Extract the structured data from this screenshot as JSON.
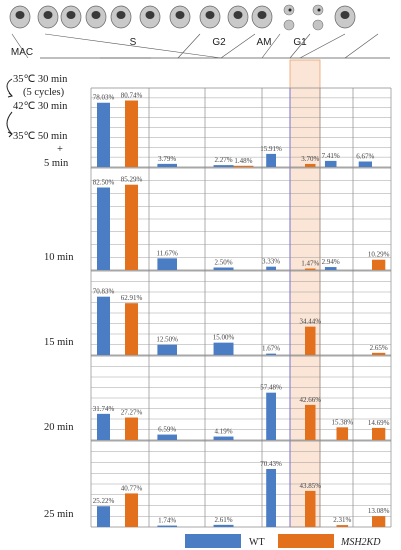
{
  "chart_data": {
    "type": "bar",
    "stages_header": [
      "MAC",
      "S",
      "G2",
      "AM",
      "G1"
    ],
    "conditions": [
      "35℃ 30 min",
      "(5 cycles)",
      "42℃ 30 min",
      "35℃ 50 min",
      "+",
      "5 min"
    ],
    "columns": 7,
    "highlight_column": 4,
    "legend": [
      "WT",
      "MSH2KD"
    ],
    "colors": {
      "WT": "#4a7dc3",
      "MSH2KD": "#e2701c",
      "highlight": "#fbe5d6",
      "highlight_border": "#e8a272",
      "grid": "#8a8a8a",
      "guide": "#6a6ad8"
    },
    "rows": [
      {
        "time": "5 min",
        "WT": [
          78.03,
          3.79,
          2.27,
          15.91,
          null,
          7.41,
          6.67
        ],
        "MSH2KD": [
          80.74,
          null,
          1.48,
          null,
          3.7,
          null,
          null
        ],
        "labels": {
          "WT": [
            "78.03%",
            "3.79%",
            "2.27%",
            "15.91%",
            "",
            "7.41%",
            "6.67%"
          ],
          "MSH2KD": [
            "80.74%",
            "",
            "1.48%",
            "",
            "3.70%",
            "",
            ""
          ]
        }
      },
      {
        "time": "10 min",
        "WT": [
          82.5,
          11.67,
          2.5,
          3.33,
          null,
          2.94,
          null
        ],
        "MSH2KD": [
          85.29,
          null,
          null,
          null,
          1.47,
          null,
          10.29
        ],
        "labels": {
          "WT": [
            "82.50%",
            "11.67%",
            "2.50%",
            "3.33%",
            "",
            "2.94%",
            ""
          ],
          "MSH2KD": [
            "85.29%",
            "",
            "",
            "",
            "1.47%",
            "",
            "10.29%"
          ]
        }
      },
      {
        "time": "15 min",
        "WT": [
          70.83,
          12.5,
          15.0,
          1.67,
          null,
          null,
          null
        ],
        "MSH2KD": [
          62.91,
          null,
          null,
          null,
          34.44,
          null,
          2.65
        ],
        "labels": {
          "WT": [
            "70.83%",
            "12.50%",
            "15.00%",
            "1.67%",
            "",
            "",
            ""
          ],
          "MSH2KD": [
            "62.91%",
            "",
            "",
            "",
            "34.44%",
            "",
            "2.65%"
          ]
        }
      },
      {
        "time": "20 min",
        "WT": [
          31.74,
          6.59,
          4.19,
          57.48,
          null,
          null,
          null
        ],
        "MSH2KD": [
          27.27,
          null,
          null,
          null,
          42.66,
          15.38,
          14.69
        ],
        "labels": {
          "WT": [
            "31.74%",
            "6.59%",
            "4.19%",
            "57.48%",
            "",
            "",
            ""
          ],
          "MSH2KD": [
            "27.27%",
            "",
            "",
            "",
            "42.66%",
            "15.38%",
            "14.69%"
          ]
        }
      },
      {
        "time": "25 min",
        "WT": [
          25.22,
          1.74,
          2.61,
          70.43,
          null,
          null,
          null
        ],
        "MSH2KD": [
          40.77,
          null,
          null,
          null,
          43.85,
          2.31,
          13.08
        ],
        "labels": {
          "WT": [
            "25.22%",
            "1.74%",
            "2.61%",
            "70.43%",
            "",
            "",
            ""
          ],
          "MSH2KD": [
            "40.77%",
            "",
            "",
            "",
            "43.85%",
            "2.31%",
            "13.08%"
          ]
        }
      }
    ],
    "ylim": [
      0,
      100
    ],
    "grid": true
  },
  "cell_icons": [
    "nucleus-icon",
    "nucleus-icon",
    "nucleus-icon",
    "nucleus-icon",
    "nucleus-icon",
    "nucleus-icon",
    "nucleus-icon",
    "dividing-nucleus-icon",
    "dividing-nucleus-icon",
    "nucleus-icon",
    "nucleus-icon"
  ]
}
